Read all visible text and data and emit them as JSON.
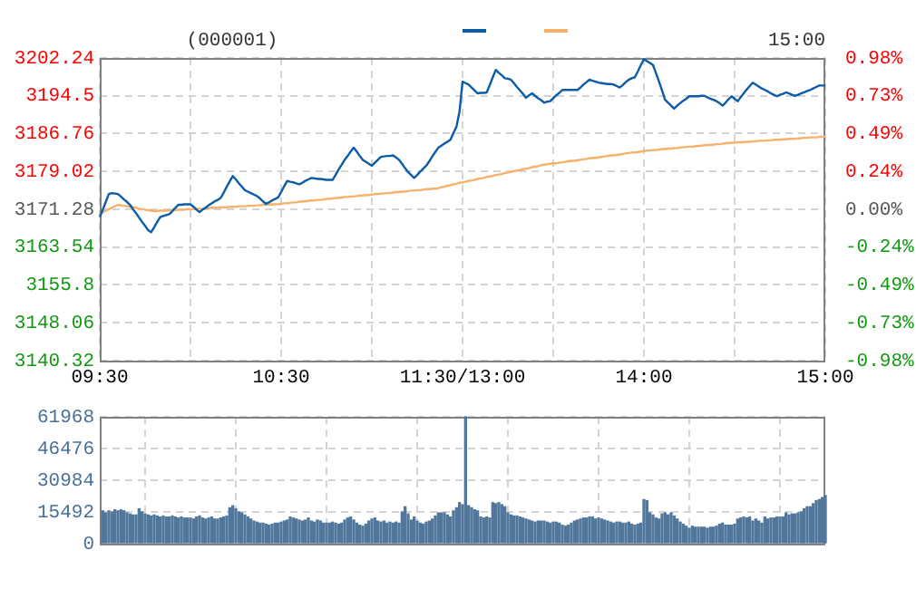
{
  "chart_data": [
    {
      "type": "line",
      "title": "(000001)",
      "annotations": [
        "15:00"
      ],
      "grid": true,
      "categories": [
        "09:30",
        null,
        null,
        null,
        null,
        null,
        null,
        null,
        null,
        null,
        null,
        null,
        null,
        null,
        null,
        null,
        null,
        null,
        null,
        null,
        null,
        null,
        null,
        null,
        null,
        null,
        null,
        null,
        null,
        null,
        null,
        null,
        null,
        null,
        null,
        null,
        null,
        null,
        null,
        null,
        null,
        null,
        null,
        null,
        null,
        null,
        null,
        null,
        null,
        null,
        null,
        null,
        null,
        null,
        null,
        null,
        null,
        null,
        null,
        null,
        "10:30",
        null,
        null,
        null,
        null,
        null,
        null,
        null,
        null,
        null,
        null,
        null,
        null,
        null,
        null,
        null,
        null,
        null,
        null,
        null,
        null,
        null,
        null,
        null,
        null,
        null,
        null,
        null,
        null,
        null,
        null,
        null,
        null,
        null,
        null,
        null,
        null,
        null,
        null,
        null,
        null,
        null,
        null,
        null,
        null,
        null,
        null,
        null,
        null,
        null,
        null,
        null,
        null,
        null,
        null,
        null,
        null,
        null,
        null,
        null,
        "11:30/13:00",
        null,
        null,
        null,
        null,
        null,
        null,
        null,
        null,
        null,
        null,
        null,
        null,
        null,
        null,
        null,
        null,
        null,
        null,
        null,
        null,
        null,
        null,
        null,
        null,
        null,
        null,
        null,
        null,
        null,
        null,
        null,
        null,
        null,
        null,
        null,
        null,
        null,
        null,
        null,
        null,
        null,
        null,
        null,
        null,
        null,
        null,
        null,
        null,
        null,
        null,
        null,
        null,
        null,
        null,
        null,
        null,
        null,
        null,
        null,
        "14:00",
        null,
        null,
        null,
        null,
        null,
        null,
        null,
        null,
        null,
        null,
        null,
        null,
        null,
        null,
        null,
        null,
        null,
        null,
        null,
        null,
        null,
        null,
        null,
        null,
        null,
        null,
        null,
        null,
        null,
        null,
        null,
        null,
        null,
        null,
        null,
        null,
        null,
        null,
        null,
        null,
        null,
        null,
        null,
        null,
        null,
        null,
        null,
        null,
        null,
        null,
        null,
        null,
        null,
        null,
        null,
        null,
        null,
        null,
        null,
        "15:00"
      ],
      "ylim": [
        3140.32,
        3202.24
      ],
      "yticks": [
        3140.32,
        3148.06,
        3155.8,
        3163.54,
        3171.28,
        3179.02,
        3186.76,
        3194.5,
        3202.24
      ],
      "y2lim": [
        -0.976,
        0.976
      ],
      "y2ticks": [
        {
          "value": -0.976,
          "label": "-0.98%"
        },
        {
          "value": -0.732,
          "label": "-0.73%"
        },
        {
          "value": -0.488,
          "label": "-0.49%"
        },
        {
          "value": -0.244,
          "label": "-0.24%"
        },
        {
          "value": 0,
          "label": "0.00%"
        },
        {
          "value": 0.244,
          "label": "0.24%"
        },
        {
          "value": 0.488,
          "label": "0.49%"
        },
        {
          "value": 0.732,
          "label": "0.73%"
        },
        {
          "value": 0.976,
          "label": "0.98%"
        }
      ],
      "series": [
        {
          "color": "#0b5ca8",
          "values": [
            3169.7,
            3171.2,
            3172.8,
            3174.4,
            3174.6,
            3174.5,
            3174.4,
            3173.9,
            3173.3,
            3172.8,
            3172.2,
            3171.3,
            3170.5,
            3169.6,
            3168.7,
            3167.9,
            3167.0,
            3166.6,
            3167.6,
            3168.7,
            3169.7,
            3169.9,
            3170.1,
            3170.3,
            3170.9,
            3171.6,
            3172.2,
            3172.2,
            3172.3,
            3172.3,
            3172.3,
            3171.8,
            3171.2,
            3170.7,
            3171.2,
            3171.6,
            3172.1,
            3172.5,
            3172.9,
            3173.2,
            3173.6,
            3174.7,
            3175.9,
            3177.0,
            3178.1,
            3177.4,
            3176.6,
            3175.9,
            3175.2,
            3174.9,
            3174.6,
            3174.3,
            3174.0,
            3173.5,
            3172.9,
            3172.4,
            3172.7,
            3173.1,
            3173.4,
            3173.7,
            3174.8,
            3176.0,
            3177.1,
            3176.9,
            3176.8,
            3176.6,
            3176.4,
            3176.7,
            3177.1,
            3177.4,
            3177.7,
            3177.6,
            3177.5,
            3177.5,
            3177.4,
            3177.3,
            3177.3,
            3177.3,
            3178.3,
            3179.4,
            3180.4,
            3181.4,
            3182.2,
            3183.1,
            3183.9,
            3183.1,
            3182.2,
            3181.4,
            3181.0,
            3180.6,
            3180.2,
            3180.8,
            3181.4,
            3182.0,
            3182.1,
            3182.2,
            3182.2,
            3182.3,
            3181.9,
            3181.4,
            3180.6,
            3179.7,
            3178.9,
            3178.3,
            3177.7,
            3178.3,
            3179.0,
            3179.6,
            3180.2,
            3181.1,
            3182.1,
            3183.0,
            3183.9,
            3184.3,
            3184.7,
            3185.1,
            3185.5,
            3186.9,
            3188.2,
            3191.3,
            3197.4,
            3197.1,
            3196.8,
            3196.2,
            3195.6,
            3195.0,
            3195.1,
            3195.1,
            3195.2,
            3196.7,
            3198.3,
            3199.8,
            3199.2,
            3198.7,
            3198.1,
            3198.0,
            3197.8,
            3197.1,
            3196.3,
            3195.6,
            3194.9,
            3194.1,
            3194.6,
            3195.0,
            3194.5,
            3194.0,
            3193.6,
            3193.1,
            3193.3,
            3193.4,
            3194.0,
            3194.6,
            3195.1,
            3195.7,
            3195.7,
            3195.7,
            3195.7,
            3195.7,
            3195.7,
            3196.2,
            3196.8,
            3197.3,
            3197.8,
            3197.6,
            3197.4,
            3197.2,
            3197.1,
            3197.0,
            3196.9,
            3196.9,
            3196.8,
            3196.5,
            3196.2,
            3196.7,
            3197.3,
            3197.8,
            3198.1,
            3198.3,
            3199.5,
            3200.8,
            3202.0,
            3201.6,
            3201.2,
            3200.8,
            3199.1,
            3197.4,
            3195.6,
            3193.7,
            3193.1,
            3192.5,
            3191.9,
            3192.5,
            3193.0,
            3193.5,
            3193.9,
            3194.4,
            3194.4,
            3194.4,
            3194.4,
            3194.5,
            3194.5,
            3194.2,
            3193.9,
            3193.7,
            3193.4,
            3193.0,
            3192.5,
            3193.1,
            3193.8,
            3194.4,
            3193.9,
            3193.4,
            3194.2,
            3195.0,
            3195.8,
            3196.5,
            3197.2,
            3196.8,
            3196.4,
            3196.0,
            3195.7,
            3195.4,
            3195.0,
            3194.7,
            3194.4,
            3194.7,
            3194.9,
            3195.2,
            3195.0,
            3194.7,
            3194.5,
            3194.7,
            3195.0,
            3195.2,
            3195.5,
            3195.7,
            3196.0,
            3196.3,
            3196.6,
            3196.6,
            3196.6
          ]
        },
        {
          "color": "#f5b26b",
          "values": [
            3170.4,
            3170.7,
            3171.0,
            3171.3,
            3171.6,
            3171.9,
            3172.2,
            3172.1,
            3172.0,
            3171.9,
            3171.8,
            3171.7,
            3171.6,
            3171.4,
            3171.3,
            3171.2,
            3171.1,
            3171.0,
            3170.9,
            3170.9,
            3171.0,
            3171.0,
            3171.0,
            3171.1,
            3171.1,
            3171.1,
            3171.2,
            3171.2,
            3171.2,
            3171.3,
            3171.3,
            3171.3,
            3171.4,
            3171.4,
            3171.4,
            3171.5,
            3171.5,
            3171.6,
            3171.6,
            3171.6,
            3171.7,
            3171.7,
            3171.7,
            3171.8,
            3171.8,
            3171.8,
            3171.9,
            3171.9,
            3171.9,
            3172.0,
            3172.0,
            3172.0,
            3172.1,
            3172.1,
            3172.2,
            3172.2,
            3172.2,
            3172.3,
            3172.3,
            3172.3,
            3172.4,
            3172.5,
            3172.5,
            3172.6,
            3172.7,
            3172.7,
            3172.8,
            3172.9,
            3172.9,
            3173.0,
            3173.1,
            3173.1,
            3173.2,
            3173.2,
            3173.3,
            3173.4,
            3173.4,
            3173.5,
            3173.6,
            3173.6,
            3173.7,
            3173.8,
            3173.8,
            3173.9,
            3173.9,
            3174.0,
            3174.1,
            3174.1,
            3174.2,
            3174.2,
            3174.3,
            3174.4,
            3174.4,
            3174.5,
            3174.5,
            3174.6,
            3174.6,
            3174.7,
            3174.8,
            3174.8,
            3174.9,
            3174.9,
            3175.0,
            3175.1,
            3175.1,
            3175.2,
            3175.2,
            3175.3,
            3175.4,
            3175.4,
            3175.5,
            3175.5,
            3175.6,
            3175.8,
            3175.9,
            3176.1,
            3176.2,
            3176.4,
            3176.5,
            3176.7,
            3176.8,
            3176.9,
            3177.1,
            3177.2,
            3177.3,
            3177.5,
            3177.6,
            3177.7,
            3177.9,
            3178.0,
            3178.1,
            3178.3,
            3178.4,
            3178.5,
            3178.7,
            3178.8,
            3178.9,
            3179.1,
            3179.2,
            3179.3,
            3179.5,
            3179.6,
            3179.7,
            3179.9,
            3180.0,
            3180.1,
            3180.3,
            3180.4,
            3180.5,
            3180.6,
            3180.7,
            3180.7,
            3180.8,
            3180.9,
            3181.0,
            3181.1,
            3181.2,
            3181.2,
            3181.3,
            3181.4,
            3181.5,
            3181.6,
            3181.7,
            3181.8,
            3181.8,
            3181.9,
            3182.0,
            3182.1,
            3182.2,
            3182.3,
            3182.3,
            3182.4,
            3182.5,
            3182.6,
            3182.7,
            3182.8,
            3182.9,
            3182.9,
            3183.0,
            3183.1,
            3183.2,
            3183.3,
            3183.3,
            3183.4,
            3183.4,
            3183.5,
            3183.6,
            3183.6,
            3183.7,
            3183.7,
            3183.8,
            3183.8,
            3183.9,
            3184.0,
            3184.0,
            3184.1,
            3184.1,
            3184.2,
            3184.2,
            3184.3,
            3184.4,
            3184.4,
            3184.5,
            3184.5,
            3184.6,
            3184.6,
            3184.7,
            3184.8,
            3184.8,
            3184.9,
            3184.9,
            3185.0,
            3185.0,
            3185.0,
            3185.1,
            3185.1,
            3185.2,
            3185.2,
            3185.3,
            3185.3,
            3185.3,
            3185.4,
            3185.4,
            3185.5,
            3185.5,
            3185.5,
            3185.6,
            3185.6,
            3185.7,
            3185.7,
            3185.7,
            3185.8,
            3185.8,
            3185.9,
            3185.9,
            3186.0,
            3186.0,
            3186.0,
            3186.1,
            3186.1,
            3186.2
          ]
        }
      ]
    },
    {
      "type": "bar",
      "grid": true,
      "tick_labels": "y",
      "color": "#52779c",
      "categories": [
        null,
        null,
        null,
        null,
        null,
        null,
        null,
        null,
        null,
        null,
        null,
        null,
        null,
        null,
        null,
        null,
        null,
        null,
        null,
        null,
        null,
        null,
        null,
        null,
        null,
        null,
        null,
        null,
        null,
        null,
        null,
        null,
        null,
        null,
        null,
        null,
        null,
        null,
        null,
        null,
        null,
        null,
        null,
        null,
        null,
        null,
        null,
        null,
        null,
        null,
        null,
        null,
        null,
        null,
        null,
        null,
        null,
        null,
        null,
        null,
        null,
        null,
        null,
        null,
        null,
        null,
        null,
        null,
        null,
        null,
        null,
        null,
        null,
        null,
        null,
        null,
        null,
        null,
        null,
        null,
        null,
        null,
        null,
        null,
        null,
        null,
        null,
        null,
        null,
        null,
        null,
        null,
        null,
        null,
        null,
        null,
        null,
        null,
        null,
        null,
        null,
        null,
        null,
        null,
        null,
        null,
        null,
        null,
        null,
        null,
        null,
        null,
        null,
        null,
        null,
        null,
        null,
        null,
        null,
        null,
        null,
        null,
        null,
        null,
        null,
        null,
        null,
        null,
        null,
        null,
        null,
        null,
        null,
        null,
        null,
        null,
        null,
        null,
        null,
        null,
        null,
        null,
        null,
        null,
        null,
        null,
        null,
        null,
        null,
        null,
        null,
        null,
        null,
        null,
        null,
        null,
        null,
        null,
        null,
        null,
        null,
        null,
        null,
        null,
        null,
        null,
        null,
        null,
        null,
        null,
        null,
        null,
        null,
        null,
        null,
        null,
        null,
        null,
        null,
        null,
        null,
        null,
        null,
        null,
        null,
        null,
        null,
        null,
        null,
        null,
        null,
        null,
        null,
        null,
        null,
        null,
        null,
        null,
        null,
        null,
        null,
        null,
        null,
        null,
        null,
        null,
        null,
        null,
        null,
        null,
        null,
        null,
        null,
        null,
        null,
        null,
        null,
        null,
        null,
        null,
        null,
        null,
        null,
        null,
        null,
        null,
        null,
        null,
        null,
        null,
        null,
        null,
        null,
        null,
        null,
        null,
        null,
        null,
        null,
        null,
        null
      ],
      "ylim": [
        0,
        61968
      ],
      "yticks": [
        0,
        15492,
        30984,
        46476,
        61968
      ],
      "values": [
        null,
        16000,
        15000,
        16000,
        15500,
        16500,
        16000,
        16500,
        16000,
        15000,
        14500,
        14000,
        14000,
        17000,
        15500,
        14500,
        14000,
        13500,
        14000,
        13500,
        13000,
        13500,
        13000,
        13000,
        13500,
        13000,
        12500,
        13000,
        12500,
        12500,
        12500,
        12000,
        13000,
        13500,
        12500,
        12000,
        12500,
        13000,
        12000,
        12000,
        12500,
        13000,
        13500,
        17500,
        18500,
        17000,
        15500,
        15000,
        14000,
        13000,
        12000,
        11000,
        10500,
        10000,
        10000,
        9500,
        9000,
        9500,
        10000,
        10000,
        10500,
        11000,
        11500,
        13000,
        12500,
        12000,
        11500,
        11000,
        11500,
        12500,
        11000,
        10500,
        11500,
        11000,
        10000,
        10000,
        10000,
        10500,
        10000,
        9500,
        10000,
        11500,
        12500,
        13000,
        11500,
        10000,
        9000,
        8500,
        9500,
        11000,
        12000,
        12500,
        11000,
        10500,
        11000,
        10000,
        10500,
        10000,
        10500,
        10000,
        15500,
        18000,
        14500,
        11500,
        13000,
        11000,
        10000,
        9500,
        10500,
        11000,
        12000,
        13500,
        15000,
        15000,
        15000,
        14000,
        13000,
        16000,
        17500,
        20000,
        19000,
        61968,
        18500,
        17500,
        16500,
        16000,
        13000,
        12500,
        13000,
        12500,
        20000,
        19500,
        20000,
        19000,
        18000,
        15000,
        14000,
        13500,
        13500,
        13000,
        12500,
        12000,
        11500,
        11000,
        10500,
        11000,
        11000,
        11000,
        10500,
        10000,
        10500,
        10500,
        10000,
        9000,
        8500,
        9000,
        10000,
        11000,
        11500,
        12000,
        12500,
        12500,
        13000,
        13000,
        12000,
        12500,
        12000,
        11500,
        11000,
        10500,
        10000,
        10500,
        10500,
        10000,
        10000,
        10500,
        9500,
        9000,
        9500,
        10000,
        21500,
        21000,
        15000,
        14000,
        12500,
        12000,
        14500,
        15000,
        14000,
        15000,
        13500,
        12000,
        10500,
        9500,
        8500,
        7500,
        8500,
        8000,
        8000,
        8000,
        8000,
        7500,
        8000,
        8000,
        8500,
        9500,
        10000,
        9000,
        9000,
        9000,
        9500,
        12000,
        12500,
        13000,
        12500,
        13000,
        11000,
        12000,
        11000,
        10000,
        13000,
        12000,
        12500,
        12500,
        13000,
        13000,
        13000,
        15000,
        14000,
        14500,
        14500,
        15000,
        15500,
        17000,
        18000,
        18000,
        19500,
        21000,
        21500,
        22500,
        23500
      ]
    }
  ]
}
